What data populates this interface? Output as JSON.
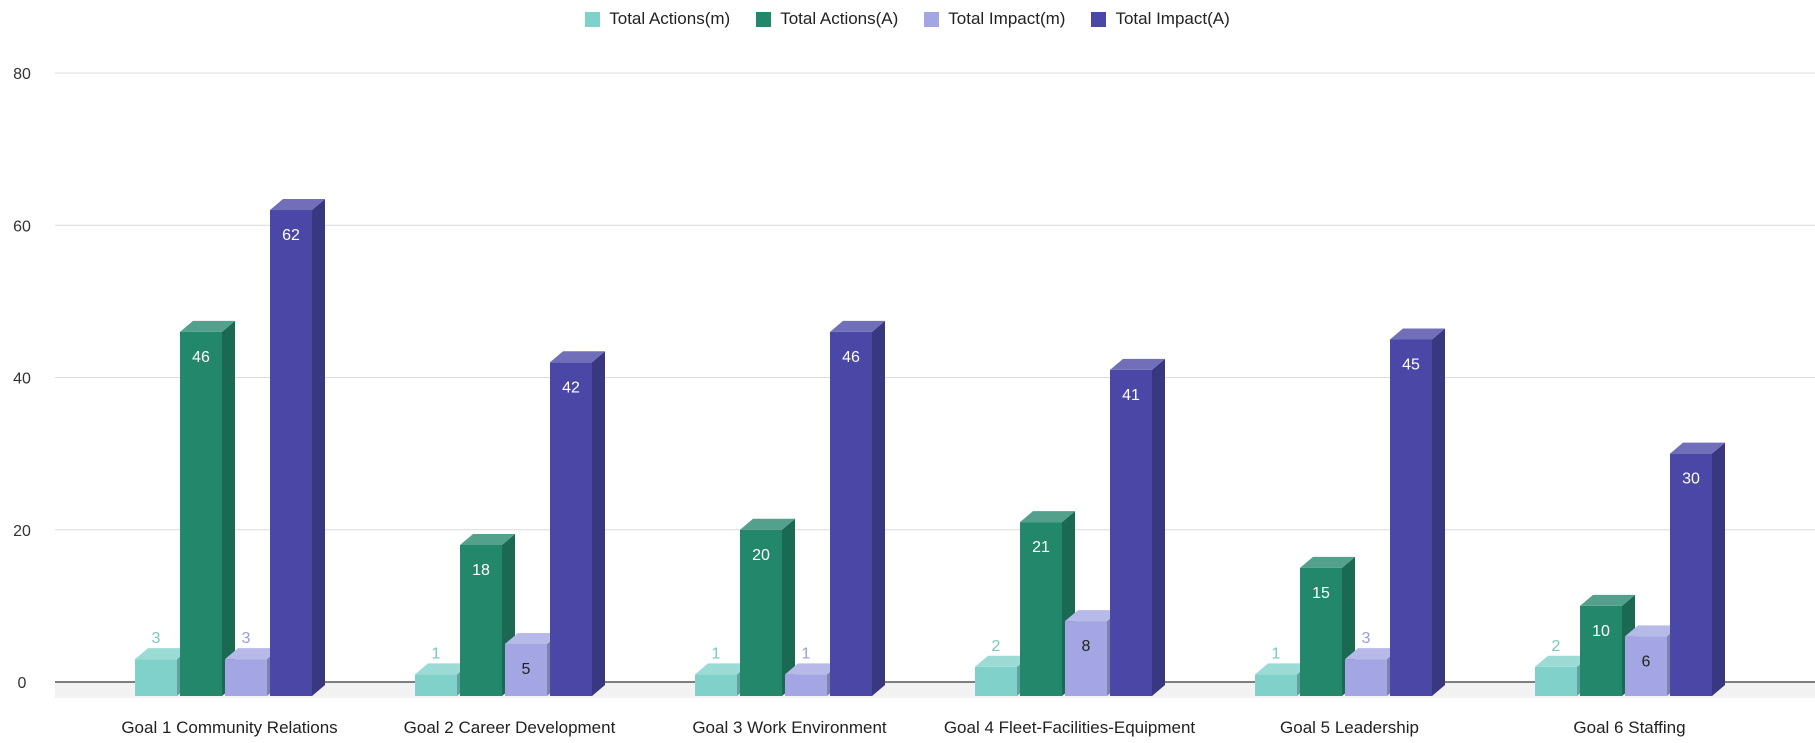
{
  "chart_data": {
    "type": "bar",
    "title": "",
    "xlabel": "",
    "ylabel": "",
    "ylim": [
      0,
      80
    ],
    "yticks": [
      0,
      20,
      40,
      60,
      80
    ],
    "grid": true,
    "legend_position": "top-center",
    "style": "3d",
    "categories": [
      "Goal 1 Community Relations",
      "Goal 2 Career Development",
      "Goal 3 Work Environment",
      "Goal 4 Fleet-Facilities-Equipment",
      "Goal 5 Leadership",
      "Goal 6 Staffing"
    ],
    "series": [
      {
        "name": "Total Actions(m)",
        "color": "#7fd1c9",
        "values": [
          3,
          1,
          1,
          2,
          1,
          2
        ]
      },
      {
        "name": "Total Actions(A)",
        "color": "#23876b",
        "values": [
          46,
          18,
          20,
          21,
          15,
          10
        ]
      },
      {
        "name": "Total Impact(m)",
        "color": "#a3a6e2",
        "values": [
          3,
          5,
          1,
          8,
          3,
          6
        ]
      },
      {
        "name": "Total Impact(A)",
        "color": "#4a47a6",
        "values": [
          62,
          42,
          46,
          41,
          45,
          30
        ]
      }
    ]
  }
}
